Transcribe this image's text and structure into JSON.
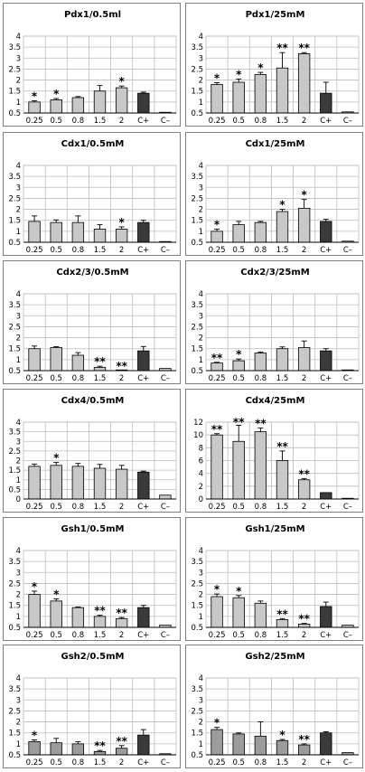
{
  "categories": [
    "0.25",
    "0.5",
    "0.8",
    "1.5",
    "2",
    "C+",
    "C–"
  ],
  "colors": {
    "bar": "#c8c8c8",
    "bar_dark": "#9c9c9c",
    "control": "#3a3a3a",
    "grid": "#bdbdbd",
    "axis": "#000000"
  },
  "chart_data": [
    {
      "type": "bar",
      "title": "Pdx1/0.5ml",
      "ylim": [
        0.5,
        4
      ],
      "yticks": [
        "0.5",
        "1",
        "1.5",
        "2",
        "2.5",
        "3",
        "3.5",
        "4"
      ],
      "values": [
        1.0,
        1.1,
        1.2,
        1.5,
        1.65,
        1.4,
        0.5
      ],
      "errors": [
        0.06,
        0.06,
        0.05,
        0.25,
        0.08,
        0.05,
        0.0
      ],
      "significance": [
        "*",
        "*",
        "",
        "",
        "*",
        "",
        ""
      ]
    },
    {
      "type": "bar",
      "title": "Pdx1/25mM",
      "ylim": [
        0.5,
        4
      ],
      "yticks": [
        "0.5",
        "1",
        "1.5",
        "2",
        "2.5",
        "3",
        "3.5",
        "4"
      ],
      "values": [
        1.8,
        1.9,
        2.25,
        2.55,
        3.2,
        1.4,
        0.55
      ],
      "errors": [
        0.08,
        0.15,
        0.1,
        0.7,
        0.05,
        0.5,
        0.0
      ],
      "significance": [
        "*",
        "*",
        "*",
        "**",
        "**",
        "",
        ""
      ]
    },
    {
      "type": "bar",
      "title": "Cdx1/0.5mM",
      "ylim": [
        0.5,
        4
      ],
      "yticks": [
        "0.5",
        "1",
        "1.5",
        "2",
        "2.5",
        "3",
        "3.5",
        "4"
      ],
      "values": [
        1.45,
        1.4,
        1.4,
        1.1,
        1.1,
        1.4,
        0.5
      ],
      "errors": [
        0.25,
        0.12,
        0.3,
        0.2,
        0.1,
        0.1,
        0.0
      ],
      "significance": [
        "",
        "",
        "",
        "",
        "*",
        "",
        ""
      ]
    },
    {
      "type": "bar",
      "title": "Cdx1/25mM",
      "ylim": [
        0.5,
        4
      ],
      "yticks": [
        "0.5",
        "1",
        "1.5",
        "2",
        "2.5",
        "3",
        "3.5",
        "4"
      ],
      "values": [
        1.0,
        1.3,
        1.4,
        1.9,
        2.05,
        1.45,
        0.55
      ],
      "errors": [
        0.1,
        0.15,
        0.05,
        0.1,
        0.4,
        0.1,
        0.0
      ],
      "significance": [
        "*",
        "",
        "",
        "*",
        "*",
        "",
        ""
      ]
    },
    {
      "type": "bar",
      "title": "Cdx2/3/0.5mM",
      "ylim": [
        0.5,
        4
      ],
      "yticks": [
        "0.5",
        "1",
        "1.5",
        "2",
        "2.5",
        "3",
        "3.5",
        "4"
      ],
      "values": [
        1.5,
        1.55,
        1.2,
        0.65,
        0.5,
        1.4,
        0.6
      ],
      "errors": [
        0.12,
        0.04,
        0.12,
        0.05,
        0.0,
        0.2,
        0.0
      ],
      "significance": [
        "",
        "",
        "",
        "**",
        "**",
        "",
        ""
      ]
    },
    {
      "type": "bar",
      "title": "Cdx2/3/25mM",
      "ylim": [
        0.5,
        4
      ],
      "yticks": [
        "0.5",
        "1",
        "1.5",
        "2",
        "2.5",
        "3",
        "3.5",
        "4"
      ],
      "values": [
        0.85,
        0.95,
        1.3,
        1.5,
        1.55,
        1.4,
        0.45
      ],
      "errors": [
        0.03,
        0.08,
        0.05,
        0.08,
        0.3,
        0.1,
        0.0
      ],
      "significance": [
        "**",
        "*",
        "",
        "",
        "",
        "",
        ""
      ]
    },
    {
      "type": "bar",
      "title": "Cdx4/0.5mM",
      "ylim": [
        0,
        4
      ],
      "yticks": [
        "0",
        "0.5",
        "1",
        "1.5",
        "2",
        "2.5",
        "3",
        "3.5",
        "4"
      ],
      "values": [
        1.7,
        1.75,
        1.7,
        1.6,
        1.55,
        1.4,
        0.2
      ],
      "errors": [
        0.12,
        0.15,
        0.15,
        0.2,
        0.2,
        0.05,
        0.0
      ],
      "significance": [
        "",
        "*",
        "",
        "",
        "",
        "",
        ""
      ]
    },
    {
      "type": "bar",
      "title": "Cdx4/25mM",
      "ylim": [
        0,
        12
      ],
      "yticks": [
        "0",
        "2",
        "4",
        "6",
        "8",
        "10",
        "12"
      ],
      "values": [
        10.0,
        9.0,
        10.5,
        6.0,
        3.0,
        1.0,
        0.1
      ],
      "errors": [
        0.2,
        2.5,
        0.6,
        1.5,
        0.2,
        0.0,
        0.0
      ],
      "significance": [
        "**",
        "**",
        "**",
        "**",
        "**",
        "",
        ""
      ]
    },
    {
      "type": "bar",
      "title": "Gsh1/0.5mM",
      "ylim": [
        0.5,
        4
      ],
      "yticks": [
        "0.5",
        "1",
        "1.5",
        "2",
        "2.5",
        "3",
        "3.5",
        "4"
      ],
      "values": [
        2.0,
        1.7,
        1.4,
        1.0,
        0.9,
        1.4,
        0.6
      ],
      "errors": [
        0.15,
        0.1,
        0.03,
        0.05,
        0.05,
        0.1,
        0.0
      ],
      "significance": [
        "*",
        "*",
        "",
        "**",
        "**",
        "",
        ""
      ]
    },
    {
      "type": "bar",
      "title": "Gsh1/25mM",
      "ylim": [
        0.5,
        4
      ],
      "yticks": [
        "0.5",
        "1",
        "1.5",
        "2",
        "2.5",
        "3",
        "3.5",
        "4"
      ],
      "values": [
        1.9,
        1.85,
        1.6,
        0.85,
        0.65,
        1.45,
        0.6
      ],
      "errors": [
        0.12,
        0.1,
        0.1,
        0.05,
        0.03,
        0.2,
        0.0
      ],
      "significance": [
        "*",
        "*",
        "",
        "**",
        "**",
        "",
        ""
      ]
    },
    {
      "type": "bar",
      "title": "Gsh2/0.5mM",
      "ylim": [
        0.5,
        4
      ],
      "yticks": [
        "0.5",
        "1",
        "1.5",
        "2",
        "2.5",
        "3",
        "3.5",
        "4"
      ],
      "values": [
        1.1,
        1.05,
        1.0,
        0.65,
        0.8,
        1.4,
        0.55
      ],
      "errors": [
        0.08,
        0.2,
        0.1,
        0.05,
        0.12,
        0.25,
        0.0
      ],
      "significance": [
        "*",
        "",
        "",
        "**",
        "**",
        "",
        ""
      ]
    },
    {
      "type": "bar",
      "title": "Gsh2/25mM",
      "ylim": [
        0.5,
        4
      ],
      "yticks": [
        "0.5",
        "1",
        "1.5",
        "2",
        "2.5",
        "3",
        "3.5",
        "4"
      ],
      "values": [
        1.65,
        1.45,
        1.35,
        1.15,
        0.95,
        1.5,
        0.6
      ],
      "errors": [
        0.1,
        0.05,
        0.65,
        0.05,
        0.05,
        0.05,
        0.0
      ],
      "significance": [
        "*",
        "",
        "",
        "*",
        "**",
        "",
        ""
      ]
    }
  ]
}
